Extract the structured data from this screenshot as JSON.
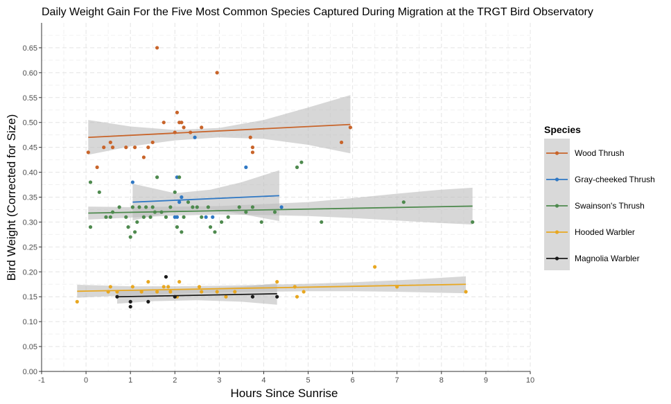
{
  "chart_data": {
    "type": "scatter",
    "title": "Daily Weight Gain For the Five Most Common Species Captured During Migration at the TRGT Bird Observatory",
    "xlabel": "Hours Since Sunrise",
    "ylabel": "Bird Weight (Corrected for Size)",
    "xlim": [
      -1,
      10
    ],
    "ylim": [
      0,
      0.7
    ],
    "x_ticks": [
      -1,
      0,
      1,
      2,
      3,
      4,
      5,
      6,
      7,
      8,
      9,
      10
    ],
    "y_ticks": [
      "0.00",
      "0.05",
      "0.10",
      "0.15",
      "0.20",
      "0.25",
      "0.30",
      "0.35",
      "0.40",
      "0.45",
      "0.50",
      "0.55",
      "0.60",
      "0.65"
    ],
    "legend_title": "Species",
    "legend_position": "right",
    "series": [
      {
        "name": "Wood Thrush",
        "color": "#c8642a",
        "points": [
          [
            0.05,
            0.44
          ],
          [
            0.25,
            0.41
          ],
          [
            0.4,
            0.45
          ],
          [
            0.55,
            0.46
          ],
          [
            0.6,
            0.45
          ],
          [
            0.9,
            0.45
          ],
          [
            1.1,
            0.45
          ],
          [
            1.3,
            0.43
          ],
          [
            1.4,
            0.45
          ],
          [
            1.5,
            0.46
          ],
          [
            1.6,
            0.65
          ],
          [
            1.75,
            0.5
          ],
          [
            2.0,
            0.48
          ],
          [
            2.05,
            0.52
          ],
          [
            2.1,
            0.5
          ],
          [
            2.15,
            0.5
          ],
          [
            2.2,
            0.49
          ],
          [
            2.35,
            0.48
          ],
          [
            2.6,
            0.49
          ],
          [
            2.95,
            0.6
          ],
          [
            3.7,
            0.47
          ],
          [
            3.75,
            0.45
          ],
          [
            3.75,
            0.44
          ],
          [
            5.75,
            0.46
          ],
          [
            5.95,
            0.49
          ]
        ],
        "fit": [
          [
            0.05,
            0.47
          ],
          [
            5.95,
            0.496
          ]
        ],
        "ci": {
          "x": [
            0.05,
            1.0,
            2.0,
            3.0,
            4.0,
            5.0,
            5.95
          ],
          "lower": [
            0.435,
            0.452,
            0.464,
            0.47,
            0.467,
            0.455,
            0.438
          ],
          "upper": [
            0.505,
            0.492,
            0.485,
            0.489,
            0.505,
            0.53,
            0.555
          ]
        }
      },
      {
        "name": "Gray-cheeked Thrush",
        "color": "#2f78c4",
        "points": [
          [
            1.05,
            0.38
          ],
          [
            2.0,
            0.31
          ],
          [
            2.05,
            0.31
          ],
          [
            2.05,
            0.39
          ],
          [
            2.1,
            0.34
          ],
          [
            2.15,
            0.35
          ],
          [
            2.45,
            0.47
          ],
          [
            2.7,
            0.31
          ],
          [
            2.85,
            0.31
          ],
          [
            3.6,
            0.41
          ],
          [
            4.4,
            0.33
          ]
        ],
        "fit": [
          [
            1.05,
            0.34
          ],
          [
            4.35,
            0.353
          ]
        ],
        "ci": {
          "x": [
            1.05,
            2.0,
            2.8,
            3.5,
            4.35
          ],
          "lower": [
            0.303,
            0.322,
            0.326,
            0.316,
            0.302
          ],
          "upper": [
            0.377,
            0.358,
            0.365,
            0.38,
            0.404
          ]
        }
      },
      {
        "name": "Swainson's Thrush",
        "color": "#4e8a4e",
        "points": [
          [
            0.1,
            0.38
          ],
          [
            0.1,
            0.29
          ],
          [
            0.3,
            0.36
          ],
          [
            0.45,
            0.31
          ],
          [
            0.55,
            0.31
          ],
          [
            0.6,
            0.32
          ],
          [
            0.75,
            0.33
          ],
          [
            0.9,
            0.31
          ],
          [
            0.95,
            0.29
          ],
          [
            1.0,
            0.27
          ],
          [
            1.05,
            0.33
          ],
          [
            1.1,
            0.28
          ],
          [
            1.15,
            0.3
          ],
          [
            1.2,
            0.33
          ],
          [
            1.3,
            0.31
          ],
          [
            1.35,
            0.33
          ],
          [
            1.45,
            0.31
          ],
          [
            1.5,
            0.33
          ],
          [
            1.55,
            0.32
          ],
          [
            1.6,
            0.39
          ],
          [
            1.7,
            0.32
          ],
          [
            1.8,
            0.31
          ],
          [
            1.9,
            0.33
          ],
          [
            2.0,
            0.36
          ],
          [
            2.05,
            0.29
          ],
          [
            2.1,
            0.39
          ],
          [
            2.15,
            0.28
          ],
          [
            2.2,
            0.31
          ],
          [
            2.3,
            0.34
          ],
          [
            2.4,
            0.33
          ],
          [
            2.5,
            0.33
          ],
          [
            2.6,
            0.31
          ],
          [
            2.75,
            0.33
          ],
          [
            2.8,
            0.29
          ],
          [
            2.9,
            0.28
          ],
          [
            3.05,
            0.3
          ],
          [
            3.2,
            0.31
          ],
          [
            3.45,
            0.33
          ],
          [
            3.6,
            0.32
          ],
          [
            3.75,
            0.33
          ],
          [
            3.95,
            0.3
          ],
          [
            4.25,
            0.32
          ],
          [
            4.75,
            0.41
          ],
          [
            4.85,
            0.42
          ],
          [
            5.3,
            0.3
          ],
          [
            7.15,
            0.34
          ],
          [
            8.7,
            0.3
          ]
        ],
        "fit": [
          [
            0.05,
            0.318
          ],
          [
            8.7,
            0.332
          ]
        ],
        "ci": {
          "x": [
            0.05,
            1.0,
            2.0,
            3.0,
            4.0,
            5.0,
            6.0,
            7.0,
            8.0,
            8.7
          ],
          "lower": [
            0.305,
            0.309,
            0.313,
            0.315,
            0.314,
            0.312,
            0.308,
            0.303,
            0.298,
            0.295
          ],
          "upper": [
            0.331,
            0.33,
            0.331,
            0.332,
            0.336,
            0.34,
            0.348,
            0.357,
            0.365,
            0.369
          ]
        }
      },
      {
        "name": "Hooded Warbler",
        "color": "#e8a720",
        "points": [
          [
            -0.2,
            0.14
          ],
          [
            0.5,
            0.16
          ],
          [
            0.55,
            0.17
          ],
          [
            0.7,
            0.16
          ],
          [
            1.05,
            0.17
          ],
          [
            1.25,
            0.16
          ],
          [
            1.4,
            0.18
          ],
          [
            1.6,
            0.16
          ],
          [
            1.75,
            0.17
          ],
          [
            1.85,
            0.17
          ],
          [
            1.9,
            0.16
          ],
          [
            2.1,
            0.18
          ],
          [
            2.05,
            0.15
          ],
          [
            2.55,
            0.17
          ],
          [
            2.6,
            0.16
          ],
          [
            2.95,
            0.16
          ],
          [
            3.15,
            0.15
          ],
          [
            3.35,
            0.16
          ],
          [
            4.3,
            0.18
          ],
          [
            4.75,
            0.15
          ],
          [
            4.7,
            0.17
          ],
          [
            4.9,
            0.16
          ],
          [
            6.5,
            0.21
          ],
          [
            7.0,
            0.17
          ],
          [
            8.55,
            0.16
          ]
        ],
        "fit": [
          [
            -0.2,
            0.161
          ],
          [
            8.55,
            0.175
          ]
        ],
        "ci": {
          "x": [
            -0.2,
            1.0,
            2.0,
            3.0,
            4.0,
            5.0,
            6.0,
            7.0,
            8.0,
            8.55
          ],
          "lower": [
            0.148,
            0.153,
            0.156,
            0.158,
            0.16,
            0.161,
            0.161,
            0.16,
            0.158,
            0.157
          ],
          "upper": [
            0.174,
            0.171,
            0.171,
            0.172,
            0.174,
            0.176,
            0.179,
            0.183,
            0.188,
            0.191
          ]
        }
      },
      {
        "name": "Magnolia Warbler",
        "color": "#1a1a1a",
        "points": [
          [
            0.7,
            0.15
          ],
          [
            1.0,
            0.13
          ],
          [
            1.0,
            0.14
          ],
          [
            1.4,
            0.14
          ],
          [
            1.8,
            0.19
          ],
          [
            2.0,
            0.15
          ],
          [
            3.75,
            0.15
          ],
          [
            4.3,
            0.15
          ]
        ],
        "fit": [
          [
            0.7,
            0.15
          ],
          [
            4.3,
            0.156
          ]
        ],
        "ci": {
          "x": [
            0.7,
            1.5,
            2.5,
            3.5,
            4.3
          ],
          "lower": [
            0.136,
            0.141,
            0.143,
            0.14,
            0.134
          ],
          "upper": [
            0.164,
            0.162,
            0.165,
            0.17,
            0.177
          ]
        }
      }
    ]
  }
}
